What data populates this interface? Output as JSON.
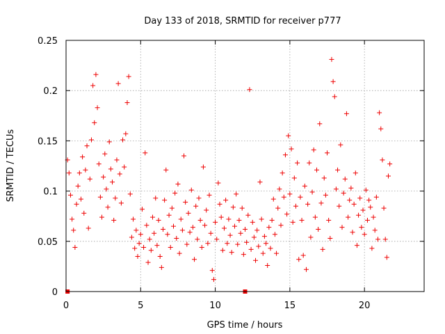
{
  "chart_data": {
    "type": "scatter",
    "title": "Day 133 of 2018, SRMTID for receiver p777",
    "xlabel": "GPS time / hours",
    "ylabel": "SRMTID / TECUs",
    "xlim": [
      0,
      24
    ],
    "ylim": [
      0,
      0.25
    ],
    "xticks": [
      "0",
      "5",
      "10",
      "15",
      "20"
    ],
    "xtick_values": [
      0,
      5,
      10,
      15,
      20
    ],
    "yticks": [
      "0",
      "0.05",
      "0.1",
      "0.15",
      "0.2",
      "0.25"
    ],
    "ytick_values": [
      0,
      0.05,
      0.1,
      0.15,
      0.2,
      0.25
    ],
    "grid": true,
    "marker": "+",
    "color": "#ee0000",
    "data_span_hours": [
      0.0,
      21.7
    ],
    "series": [
      {
        "name": "SRMTID",
        "points": [
          [
            0.1,
            0.131
          ],
          [
            0.2,
            0.118
          ],
          [
            0.3,
            0.096
          ],
          [
            0.4,
            0.072
          ],
          [
            0.5,
            0.061
          ],
          [
            0.6,
            0.044
          ],
          [
            0.7,
            0.087
          ],
          [
            0.8,
            0.105
          ],
          [
            0.9,
            0.118
          ],
          [
            1.0,
            0.092
          ],
          [
            1.1,
            0.134
          ],
          [
            1.2,
            0.078
          ],
          [
            1.3,
            0.121
          ],
          [
            1.4,
            0.145
          ],
          [
            1.5,
            0.063
          ],
          [
            1.6,
            0.112
          ],
          [
            1.7,
            0.151
          ],
          [
            1.8,
            0.205
          ],
          [
            1.9,
            0.168
          ],
          [
            2.0,
            0.216
          ],
          [
            2.1,
            0.183
          ],
          [
            2.2,
            0.127
          ],
          [
            2.3,
            0.094
          ],
          [
            2.4,
            0.074
          ],
          [
            2.5,
            0.114
          ],
          [
            2.6,
            0.137
          ],
          [
            2.7,
            0.102
          ],
          [
            2.8,
            0.084
          ],
          [
            2.9,
            0.149
          ],
          [
            3.0,
            0.122
          ],
          [
            3.1,
            0.109
          ],
          [
            3.2,
            0.071
          ],
          [
            3.3,
            0.093
          ],
          [
            3.4,
            0.131
          ],
          [
            3.5,
            0.207
          ],
          [
            3.6,
            0.117
          ],
          [
            3.7,
            0.088
          ],
          [
            3.8,
            0.151
          ],
          [
            3.9,
            0.124
          ],
          [
            4.0,
            0.157
          ],
          [
            4.1,
            0.188
          ],
          [
            4.2,
            0.214
          ],
          [
            4.3,
            0.097
          ],
          [
            4.4,
            0.054
          ],
          [
            4.5,
            0.072
          ],
          [
            4.6,
            0.043
          ],
          [
            4.7,
            0.061
          ],
          [
            4.8,
            0.035
          ],
          [
            4.9,
            0.048
          ],
          [
            5.0,
            0.057
          ],
          [
            5.1,
            0.082
          ],
          [
            5.2,
            0.044
          ],
          [
            5.3,
            0.138
          ],
          [
            5.4,
            0.066
          ],
          [
            5.5,
            0.029
          ],
          [
            5.6,
            0.052
          ],
          [
            5.7,
            0.041
          ],
          [
            5.8,
            0.074
          ],
          [
            5.9,
            0.058
          ],
          [
            6.0,
            0.093
          ],
          [
            6.1,
            0.046
          ],
          [
            6.2,
            0.071
          ],
          [
            6.3,
            0.035
          ],
          [
            6.4,
            0.024
          ],
          [
            6.5,
            0.062
          ],
          [
            6.6,
            0.091
          ],
          [
            6.7,
            0.121
          ],
          [
            6.8,
            0.057
          ],
          [
            6.9,
            0.076
          ],
          [
            7.0,
            0.044
          ],
          [
            7.1,
            0.083
          ],
          [
            7.2,
            0.065
          ],
          [
            7.3,
            0.098
          ],
          [
            7.4,
            0.053
          ],
          [
            7.5,
            0.107
          ],
          [
            7.6,
            0.038
          ],
          [
            7.7,
            0.072
          ],
          [
            7.8,
            0.061
          ],
          [
            7.9,
            0.135
          ],
          [
            8.0,
            0.089
          ],
          [
            8.1,
            0.047
          ],
          [
            8.2,
            0.078
          ],
          [
            8.3,
            0.059
          ],
          [
            8.4,
            0.101
          ],
          [
            8.5,
            0.064
          ],
          [
            8.6,
            0.032
          ],
          [
            8.7,
            0.085
          ],
          [
            8.8,
            0.052
          ],
          [
            8.9,
            0.093
          ],
          [
            9.0,
            0.071
          ],
          [
            9.1,
            0.044
          ],
          [
            9.2,
            0.124
          ],
          [
            9.3,
            0.066
          ],
          [
            9.4,
            0.081
          ],
          [
            9.5,
            0.048
          ],
          [
            9.6,
            0.096
          ],
          [
            9.7,
            0.058
          ],
          [
            9.8,
            0.021
          ],
          [
            9.9,
            0.012
          ],
          [
            10.0,
            0.069
          ],
          [
            10.1,
            0.052
          ],
          [
            10.2,
            0.108
          ],
          [
            10.3,
            0.087
          ],
          [
            10.4,
            0.074
          ],
          [
            10.5,
            0.041
          ],
          [
            10.6,
            0.063
          ],
          [
            10.7,
            0.091
          ],
          [
            10.8,
            0.048
          ],
          [
            10.9,
            0.072
          ],
          [
            11.0,
            0.056
          ],
          [
            11.1,
            0.039
          ],
          [
            11.2,
            0.084
          ],
          [
            11.3,
            0.065
          ],
          [
            11.4,
            0.097
          ],
          [
            11.5,
            0.047
          ],
          [
            11.6,
            0.071
          ],
          [
            11.7,
            0.058
          ],
          [
            11.8,
            0.083
          ],
          [
            11.9,
            0.037
          ],
          [
            12.0,
            0.062
          ],
          [
            12.1,
            0.049
          ],
          [
            12.2,
            0.076
          ],
          [
            12.3,
            0.201
          ],
          [
            12.4,
            0.042
          ],
          [
            12.5,
            0.069
          ],
          [
            12.6,
            0.054
          ],
          [
            12.7,
            0.031
          ],
          [
            12.8,
            0.061
          ],
          [
            12.9,
            0.045
          ],
          [
            13.0,
            0.109
          ],
          [
            13.1,
            0.072
          ],
          [
            13.2,
            0.038
          ],
          [
            13.3,
            0.055
          ],
          [
            13.4,
            0.048
          ],
          [
            13.5,
            0.026
          ],
          [
            13.6,
            0.064
          ],
          [
            13.7,
            0.043
          ],
          [
            13.8,
            0.071
          ],
          [
            13.9,
            0.092
          ],
          [
            14.0,
            0.057
          ],
          [
            14.1,
            0.038
          ],
          [
            14.2,
            0.083
          ],
          [
            14.3,
            0.102
          ],
          [
            14.4,
            0.066
          ],
          [
            14.5,
            0.118
          ],
          [
            14.6,
            0.094
          ],
          [
            14.7,
            0.136
          ],
          [
            14.8,
            0.077
          ],
          [
            14.9,
            0.155
          ],
          [
            15.0,
            0.097
          ],
          [
            15.1,
            0.142
          ],
          [
            15.2,
            0.069
          ],
          [
            15.3,
            0.113
          ],
          [
            15.4,
            0.085
          ],
          [
            15.5,
            0.128
          ],
          [
            15.6,
            0.032
          ],
          [
            15.7,
            0.094
          ],
          [
            15.8,
            0.071
          ],
          [
            15.9,
            0.036
          ],
          [
            16.0,
            0.105
          ],
          [
            16.1,
            0.022
          ],
          [
            16.2,
            0.087
          ],
          [
            16.3,
            0.128
          ],
          [
            16.4,
            0.054
          ],
          [
            16.5,
            0.099
          ],
          [
            16.6,
            0.141
          ],
          [
            16.7,
            0.074
          ],
          [
            16.8,
            0.121
          ],
          [
            16.9,
            0.062
          ],
          [
            17.0,
            0.167
          ],
          [
            17.1,
            0.088
          ],
          [
            17.2,
            0.042
          ],
          [
            17.3,
            0.113
          ],
          [
            17.4,
            0.096
          ],
          [
            17.5,
            0.138
          ],
          [
            17.6,
            0.071
          ],
          [
            17.7,
            0.053
          ],
          [
            17.8,
            0.231
          ],
          [
            17.9,
            0.209
          ],
          [
            18.0,
            0.194
          ],
          [
            18.1,
            0.102
          ],
          [
            18.2,
            0.121
          ],
          [
            18.3,
            0.085
          ],
          [
            18.4,
            0.146
          ],
          [
            18.5,
            0.064
          ],
          [
            18.6,
            0.098
          ],
          [
            18.7,
            0.112
          ],
          [
            18.8,
            0.177
          ],
          [
            18.9,
            0.074
          ],
          [
            19.0,
            0.091
          ],
          [
            19.1,
            0.103
          ],
          [
            19.2,
            0.059
          ],
          [
            19.3,
            0.087
          ],
          [
            19.4,
            0.118
          ],
          [
            19.5,
            0.046
          ],
          [
            19.6,
            0.076
          ],
          [
            19.7,
            0.093
          ],
          [
            19.8,
            0.064
          ],
          [
            19.9,
            0.081
          ],
          [
            20.0,
            0.057
          ],
          [
            20.1,
            0.101
          ],
          [
            20.2,
            0.071
          ],
          [
            20.3,
            0.091
          ],
          [
            20.4,
            0.084
          ],
          [
            20.5,
            0.043
          ],
          [
            20.6,
            0.074
          ],
          [
            20.7,
            0.061
          ],
          [
            20.8,
            0.094
          ],
          [
            20.9,
            0.052
          ],
          [
            21.0,
            0.178
          ],
          [
            21.1,
            0.162
          ],
          [
            21.2,
            0.131
          ],
          [
            21.3,
            0.083
          ],
          [
            21.4,
            0.052
          ],
          [
            21.5,
            0.034
          ],
          [
            21.6,
            0.115
          ],
          [
            21.7,
            0.127
          ]
        ]
      }
    ],
    "zero_markers_hours": [
      0.1,
      12.0
    ]
  }
}
